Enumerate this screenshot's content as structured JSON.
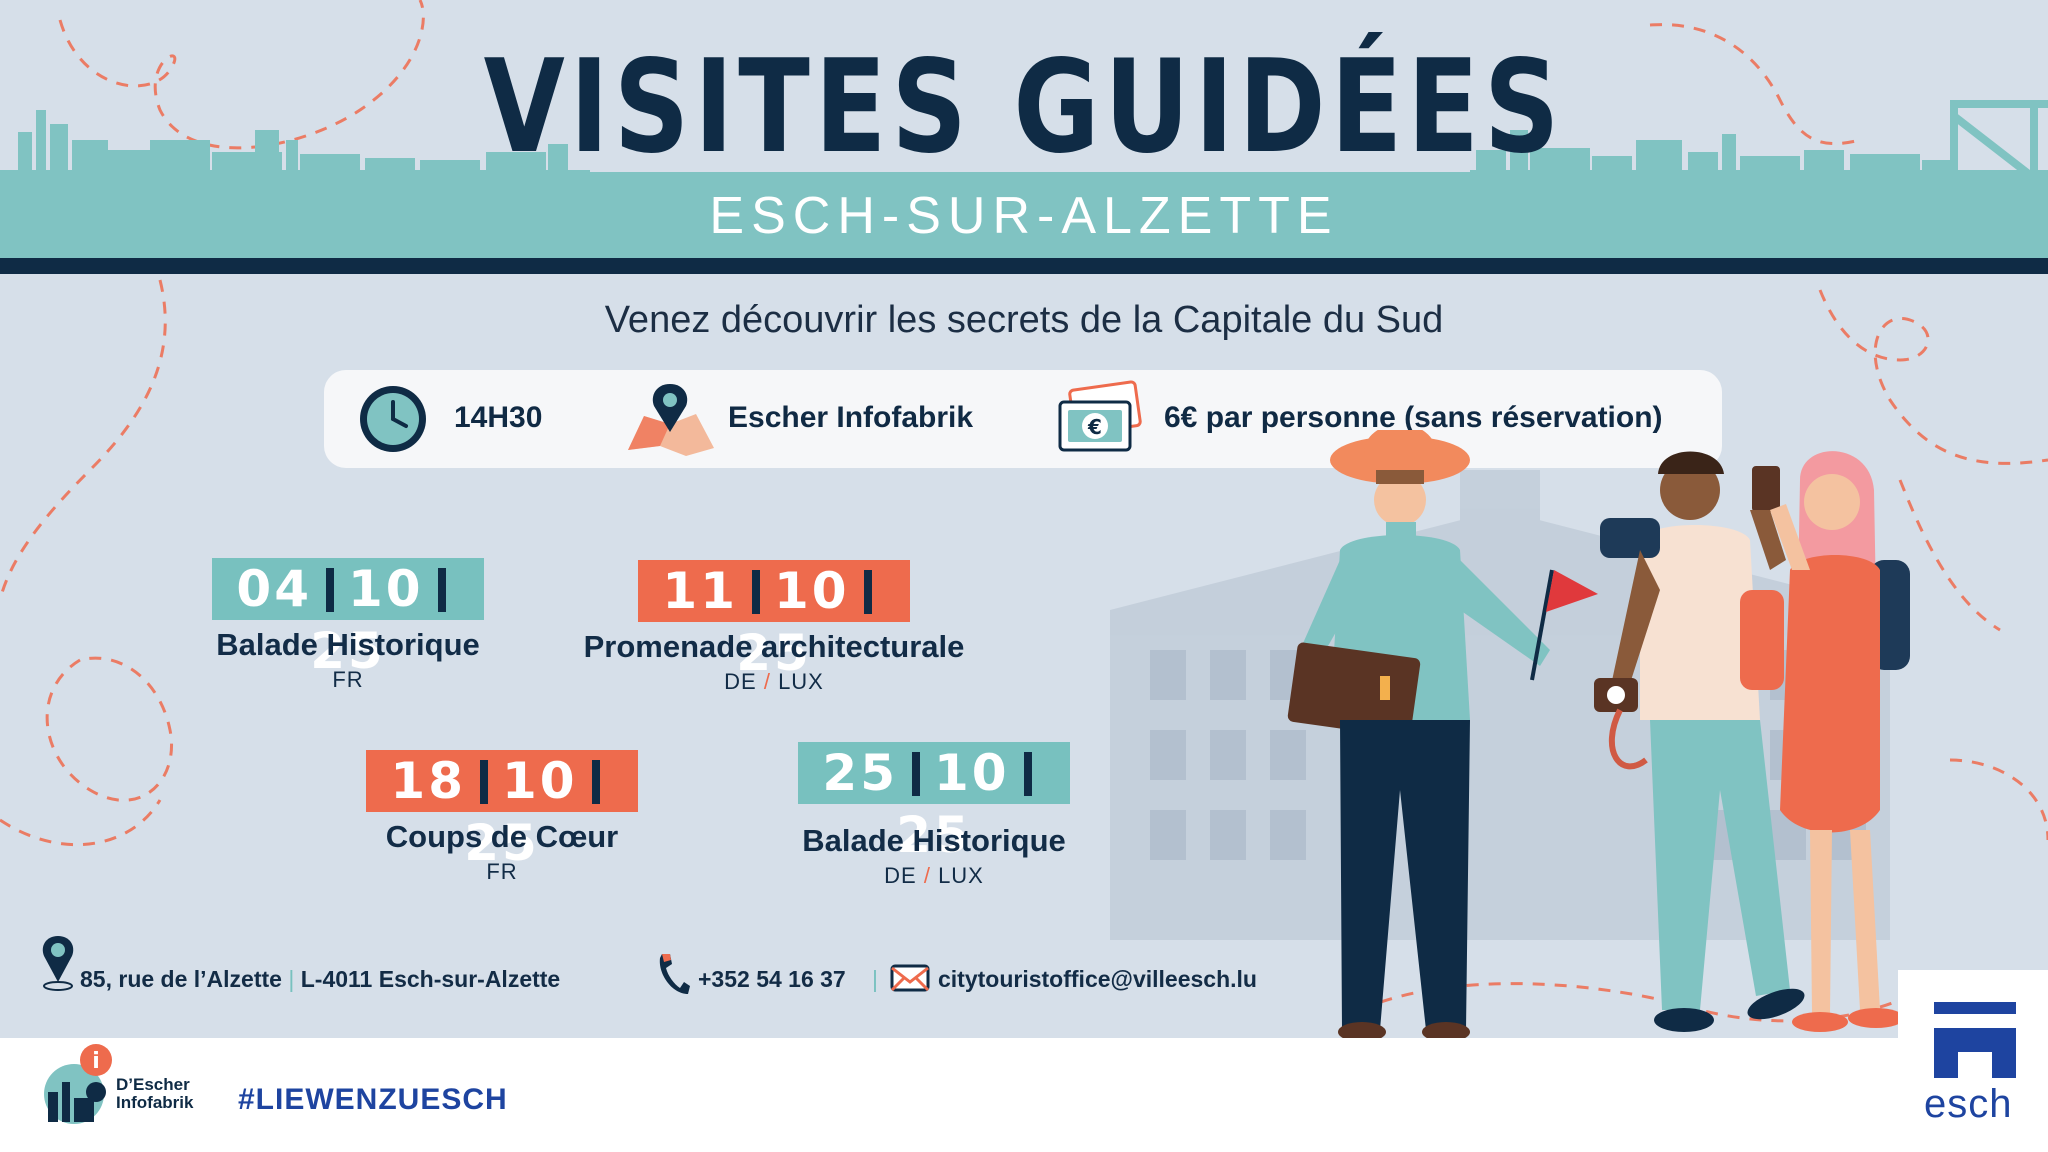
{
  "header": {
    "title": "VISITES GUIDÉES",
    "subtitle": "ESCH-SUR-ALZETTE",
    "tagline": "Venez découvrir les secrets de la Capitale du Sud"
  },
  "info": {
    "time": "14H30",
    "place": "Escher Infofabrik",
    "price": "6€ par personne (sans réservation)"
  },
  "events": [
    {
      "day": "04",
      "month": "10",
      "year": "25",
      "name": "Balade Historique",
      "lang1": "FR",
      "lang2": ""
    },
    {
      "day": "11",
      "month": "10",
      "year": "25",
      "name": "Promenade architecturale",
      "lang1": "DE",
      "lang2": "LUX"
    },
    {
      "day": "18",
      "month": "10",
      "year": "25",
      "name": "Coups de Cœur",
      "lang1": "FR",
      "lang2": ""
    },
    {
      "day": "25",
      "month": "10",
      "year": "25",
      "name": "Balade Historique",
      "lang1": "DE",
      "lang2": "LUX"
    }
  ],
  "contact": {
    "street": "85, rue de l’Alzette",
    "city": "L-4011 Esch-sur-Alzette",
    "phone": "+352 54 16 37",
    "email": "citytouristoffice@villeesch.lu"
  },
  "footer": {
    "infofabrik_line1": "D’Escher",
    "infofabrik_line2": "Infofabrik",
    "hashtag": "#LIEWENZUESCH",
    "esch_logo_text": "esch"
  },
  "icons": [
    "clock-icon",
    "map-pin-icon",
    "banknote-icon",
    "location-pin-icon",
    "phone-icon",
    "mail-icon",
    "info-icon"
  ],
  "colors": {
    "navy": "#0f2b45",
    "teal": "#78c1bf",
    "coral": "#ee6b4d",
    "background": "#d6dfe9",
    "brand_blue": "#1e44a0"
  }
}
